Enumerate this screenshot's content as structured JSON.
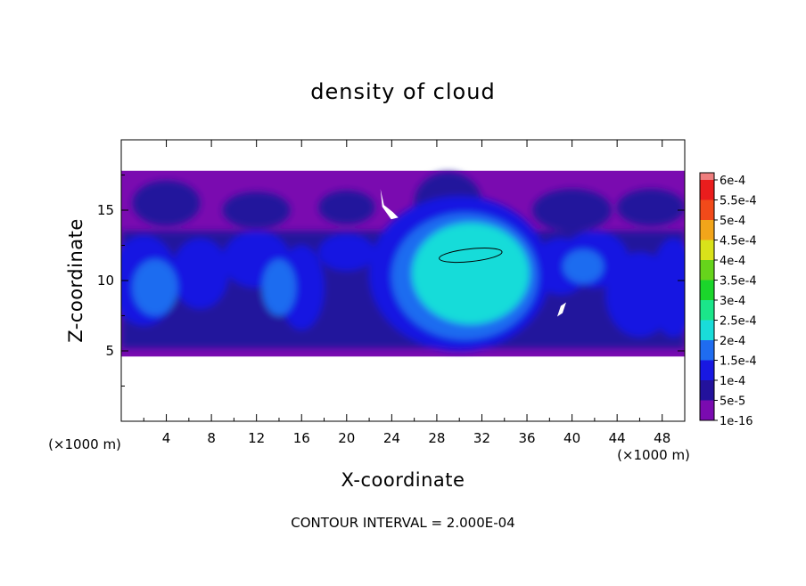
{
  "chart_data": {
    "type": "heatmap",
    "title": "density of cloud",
    "xlabel": "X-coordinate",
    "ylabel": "Z-coordinate",
    "x_unit": "(×1000 m)",
    "y_unit": "(×1000 m)",
    "xlim": [
      0,
      50
    ],
    "ylim": [
      0,
      20
    ],
    "x_ticks": [
      4,
      8,
      12,
      16,
      20,
      24,
      28,
      32,
      36,
      40,
      44,
      48
    ],
    "y_ticks": [
      5,
      10,
      15
    ],
    "footnote": "CONTOUR INTERVAL = 2.000E-04",
    "colorbar": {
      "levels": [
        "1e-16",
        "5e-5",
        "1e-4",
        "1.5e-4",
        "2e-4",
        "2.5e-4",
        "3e-4",
        "3.5e-4",
        "4e-4",
        "4.5e-4",
        "5e-4",
        "5.5e-4",
        "6e-4"
      ],
      "colors": [
        "#7a0bb0",
        "#23129c",
        "#1818e2",
        "#1f6cf0",
        "#19dcd9",
        "#1be68a",
        "#1bd62b",
        "#66d41b",
        "#d9e21a",
        "#f2a51a",
        "#f24a1a",
        "#ea1d1d",
        "#ef7e7e"
      ]
    },
    "field": {
      "cloud_base_z": 4.6,
      "cloud_top_z": 17.8,
      "max_density": 0.00022,
      "max_density_location": {
        "x": 31,
        "z": 11.8
      }
    },
    "grid": false,
    "legend": "right"
  }
}
